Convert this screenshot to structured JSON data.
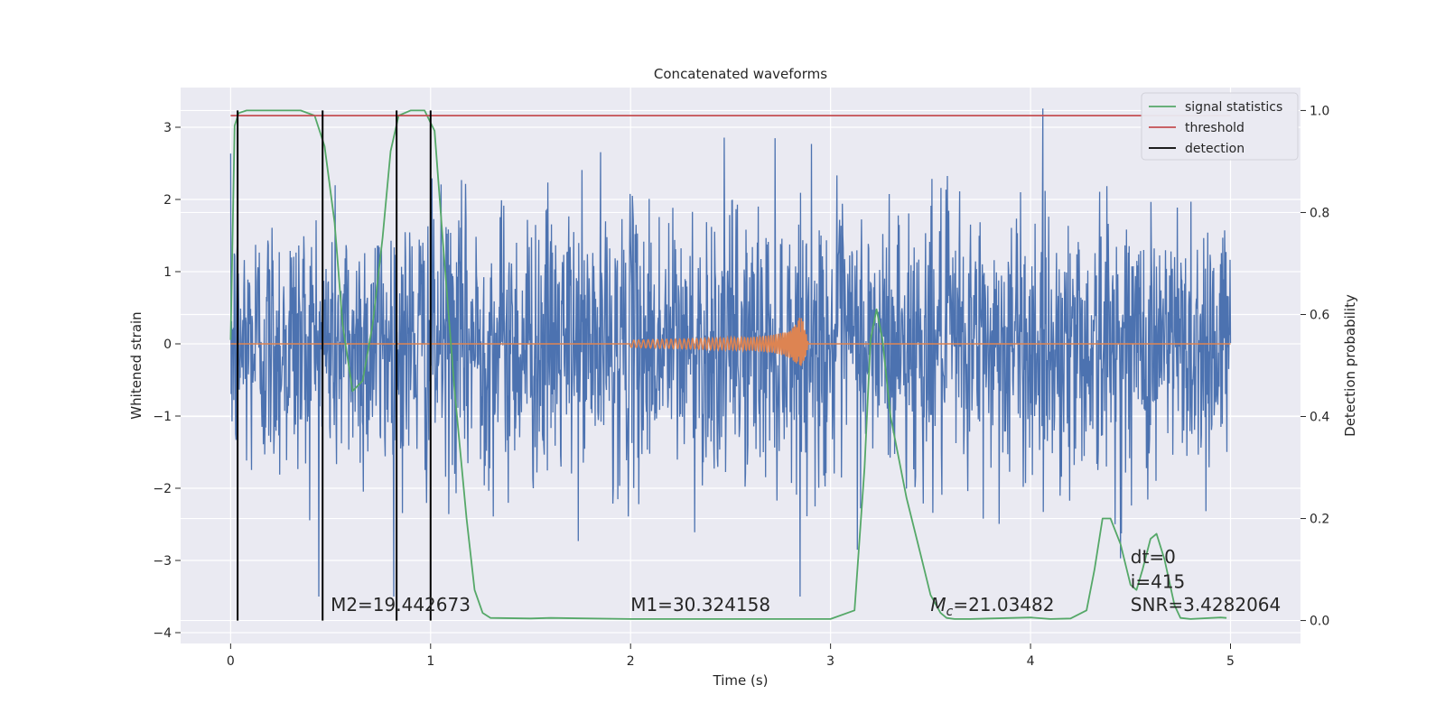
{
  "chart_data": {
    "type": "line",
    "title": "Concatenated waveforms",
    "xlabel": "Time (s)",
    "ylabel": "Whitened strain",
    "y2label": "Detection probability",
    "xlim": [
      -0.25,
      5.35
    ],
    "ylim": [
      -4.15,
      3.55
    ],
    "y2lim": [
      -0.045,
      1.045
    ],
    "x_ticks": [
      0,
      1,
      2,
      3,
      4,
      5
    ],
    "x_tick_labels": [
      "0",
      "1",
      "2",
      "3",
      "4",
      "5"
    ],
    "y_ticks": [
      -4,
      -3,
      -2,
      -1,
      0,
      1,
      2,
      3
    ],
    "y_tick_labels": [
      "−4",
      "−3",
      "−2",
      "−1",
      "0",
      "1",
      "2",
      "3"
    ],
    "y2_ticks": [
      0,
      0.2,
      0.4,
      0.6,
      0.8,
      1.0
    ],
    "y2_tick_labels": [
      "0.0",
      "0.2",
      "0.4",
      "0.6",
      "0.8",
      "1.0"
    ],
    "grid": true,
    "legend_position": "top-right",
    "legend": [
      "signal statistics",
      "threshold",
      "detection"
    ],
    "colors": {
      "noise": "#4c72b0",
      "waveform": "#dd8452",
      "signal_statistics": "#55a868",
      "threshold": "#c44e52",
      "detection": "#000000",
      "background": "#eaeaf2",
      "grid": "#ffffff"
    },
    "noise": {
      "x_range": [
        0,
        5
      ],
      "amplitude_range": [
        -3.5,
        3.3
      ]
    },
    "waveform": {
      "x_range": [
        0,
        5
      ],
      "chirp_start": 2.0,
      "merger": 2.86,
      "peak_amplitude": 0.6
    },
    "series": [
      {
        "name": "signal statistics",
        "axis": "right",
        "x": [
          0,
          0.02,
          0.04,
          0.08,
          0.2,
          0.35,
          0.42,
          0.47,
          0.52,
          0.56,
          0.61,
          0.66,
          0.71,
          0.76,
          0.8,
          0.84,
          0.9,
          0.97,
          1.02,
          1.06,
          1.12,
          1.18,
          1.22,
          1.26,
          1.3,
          1.5,
          1.6,
          2.0,
          2.5,
          3.0,
          3.12,
          3.17,
          3.2,
          3.23,
          3.26,
          3.3,
          3.38,
          3.45,
          3.5,
          3.55,
          3.58,
          3.62,
          3.7,
          3.8,
          4.0,
          4.1,
          4.2,
          4.28,
          4.32,
          4.36,
          4.4,
          4.45,
          4.5,
          4.53,
          4.56,
          4.6,
          4.63,
          4.67,
          4.72,
          4.75,
          4.8,
          4.95,
          4.98
        ],
        "y": [
          0.55,
          0.97,
          0.995,
          1.0,
          1.0,
          1.0,
          0.99,
          0.93,
          0.78,
          0.58,
          0.45,
          0.47,
          0.58,
          0.75,
          0.92,
          0.99,
          1.0,
          1.0,
          0.96,
          0.75,
          0.45,
          0.2,
          0.06,
          0.015,
          0.005,
          0.004,
          0.005,
          0.003,
          0.003,
          0.003,
          0.02,
          0.3,
          0.55,
          0.61,
          0.55,
          0.4,
          0.24,
          0.13,
          0.05,
          0.015,
          0.005,
          0.003,
          0.003,
          0.004,
          0.006,
          0.003,
          0.004,
          0.02,
          0.1,
          0.2,
          0.2,
          0.15,
          0.07,
          0.06,
          0.1,
          0.16,
          0.17,
          0.12,
          0.03,
          0.005,
          0.003,
          0.006,
          0.005
        ]
      },
      {
        "name": "threshold",
        "axis": "right",
        "x": [
          0,
          5
        ],
        "y": [
          0.99,
          0.99
        ]
      },
      {
        "name": "detection",
        "axis": "right",
        "type": "vlines",
        "x": [
          0.035,
          0.46,
          0.83,
          1.0
        ],
        "ymin": 0,
        "ymax": 1
      }
    ],
    "annotations": [
      {
        "text": "M2=19.442673",
        "x": 0.5,
        "y": -3.7
      },
      {
        "text": "M1=30.324158",
        "x": 2.0,
        "y": -3.7
      },
      {
        "text": "M",
        "sub": "c",
        "rest": "=21.03482",
        "x": 3.5,
        "y": -3.7
      },
      {
        "text": "dt=0",
        "x": 4.5,
        "y": -3.04
      },
      {
        "text": "i=415",
        "x": 4.5,
        "y": -3.38
      },
      {
        "text": "SNR=3.4282064",
        "x": 4.5,
        "y": -3.7
      }
    ]
  }
}
